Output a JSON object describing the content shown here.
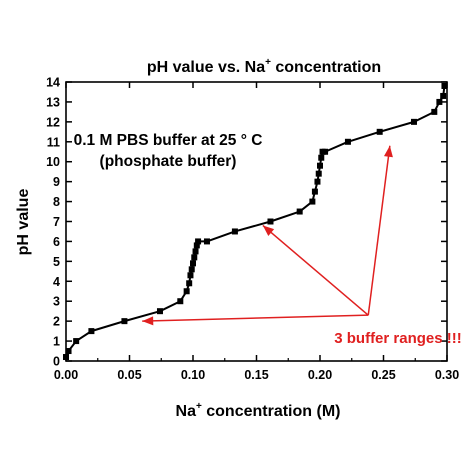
{
  "chart_data": {
    "type": "line",
    "title": {
      "prefix": "pH value vs. Na",
      "superscript": "+",
      "suffix": " concentration"
    },
    "xlabel": {
      "prefix": "Na",
      "superscript": "+",
      "suffix": " concentration (M)"
    },
    "ylabel": "pH value",
    "xlim": [
      0,
      0.3
    ],
    "ylim": [
      0,
      14
    ],
    "x_ticks": [
      0.0,
      0.05,
      0.1,
      0.15,
      0.2,
      0.25,
      0.3
    ],
    "x_tick_labels": [
      "0.00",
      "0.05",
      "0.10",
      "0.15",
      "0.20",
      "0.25",
      "0.30"
    ],
    "y_ticks": [
      0,
      1,
      2,
      3,
      4,
      5,
      6,
      7,
      8,
      9,
      10,
      11,
      12,
      13,
      14
    ],
    "y_tick_labels": [
      "0",
      "1",
      "2",
      "3",
      "4",
      "5",
      "6",
      "7",
      "8",
      "9",
      "10",
      "11",
      "12",
      "13",
      "14"
    ],
    "grid": false,
    "marker": "square",
    "line_color": "#000000",
    "annotation_lines": [
      "0.1 M PBS buffer at 25 ° C",
      "(phosphate buffer)"
    ],
    "callout": {
      "text": "3 buffer ranges !!!",
      "color": "#e02020",
      "targets": [
        {
          "x": 0.06,
          "y": 2.0
        },
        {
          "x": 0.155,
          "y": 6.8
        },
        {
          "x": 0.255,
          "y": 10.8
        }
      ],
      "source": {
        "x": 0.238,
        "y": 2.3
      }
    },
    "x": [
      0.0,
      0.002,
      0.008,
      0.02,
      0.046,
      0.074,
      0.09,
      0.095,
      0.097,
      0.098,
      0.099,
      0.1,
      0.101,
      0.102,
      0.103,
      0.104,
      0.111,
      0.133,
      0.161,
      0.184,
      0.194,
      0.196,
      0.198,
      0.199,
      0.2,
      0.201,
      0.202,
      0.204,
      0.222,
      0.247,
      0.274,
      0.29,
      0.294,
      0.297,
      0.298
    ],
    "y": [
      0.2,
      0.5,
      1.0,
      1.5,
      2.0,
      2.5,
      3.0,
      3.5,
      3.9,
      4.3,
      4.6,
      4.9,
      5.2,
      5.5,
      5.8,
      6.0,
      6.0,
      6.5,
      7.0,
      7.5,
      8.0,
      8.5,
      9.0,
      9.4,
      9.8,
      10.2,
      10.5,
      10.5,
      11.0,
      11.5,
      12.0,
      12.5,
      13.0,
      13.3,
      13.8
    ]
  }
}
